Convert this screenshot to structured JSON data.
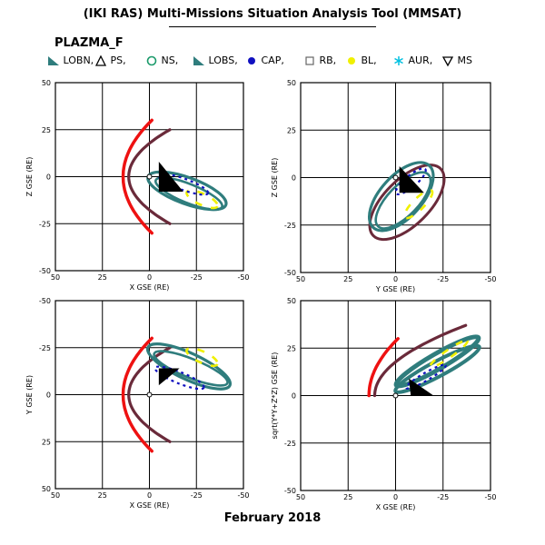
{
  "header": {
    "title": "(IKI RAS) Multi-Missions Situation Analysis Tool (MMSAT)",
    "mission": "PLAZMA_F"
  },
  "legend": [
    {
      "label": "LOBN,",
      "icon": "triangle-filled-icon",
      "color": "#2f7d7d"
    },
    {
      "label": "PS,",
      "icon": "triangle-outline-icon",
      "color": "#000000"
    },
    {
      "label": "NS,",
      "icon": "circle-outline-icon",
      "color": "#1a9a6a"
    },
    {
      "label": "LOBS,",
      "icon": "triangle-filled-icon",
      "color": "#2f7d7d"
    },
    {
      "label": "CAP,",
      "icon": "dot-icon",
      "color": "#1010c0"
    },
    {
      "label": "RB,",
      "icon": "square-outline-icon",
      "color": "#666666"
    },
    {
      "label": "BL,",
      "icon": "dot-icon",
      "color": "#f0f000"
    },
    {
      "label": "AUR,",
      "icon": "asterisk-icon",
      "color": "#00c0e0"
    },
    {
      "label": "MS",
      "icon": "triangle-down-outline-icon",
      "color": "#000000"
    }
  ],
  "colors": {
    "bow_shock": "#ee1111",
    "magnetopause": "#6a2a3a",
    "orbit": "#2f7d7d",
    "bl": "#f0f000",
    "cap": "#1010c0",
    "sun_marker": "#000000"
  },
  "chart_data": [
    {
      "type": "line",
      "xlabel": "X GSE (RE)",
      "ylabel": "Z GSE (RE)",
      "xlim": [
        50,
        -50
      ],
      "ylim": [
        -50,
        50
      ],
      "xticks": [
        "50",
        "25",
        "0",
        "-25",
        "-50"
      ],
      "yticks": [
        "50",
        "25",
        "0",
        "-25",
        "-50"
      ]
    },
    {
      "type": "line",
      "xlabel": "Y GSE (RE)",
      "ylabel": "Z GSE (RE)",
      "xlim": [
        50,
        -50
      ],
      "ylim": [
        -50,
        50
      ],
      "xticks": [
        "50",
        "25",
        "0",
        "-25",
        "-50"
      ],
      "yticks": [
        "50",
        "25",
        "0",
        "-25",
        "-50"
      ]
    },
    {
      "type": "line",
      "xlabel": "X GSE (RE)",
      "ylabel": "Y GSE (RE)",
      "xlim": [
        50,
        -50
      ],
      "ylim": [
        -50,
        50
      ],
      "xticks": [
        "50",
        "25",
        "0",
        "-25",
        "-50"
      ],
      "yticks": [
        "-50",
        "-25",
        "0",
        "25",
        "50"
      ]
    },
    {
      "type": "line",
      "xlabel": "X GSE (RE)",
      "ylabel": "sqrt(Y*Y+Z*Z) GSE (RE)",
      "xlim": [
        50,
        -50
      ],
      "ylim": [
        -50,
        50
      ],
      "xticks": [
        "50",
        "25",
        "0",
        "-25",
        "-50"
      ],
      "yticks": [
        "50",
        "25",
        "0",
        "-25",
        "-50"
      ]
    }
  ],
  "footer": {
    "date": "February 2018"
  }
}
